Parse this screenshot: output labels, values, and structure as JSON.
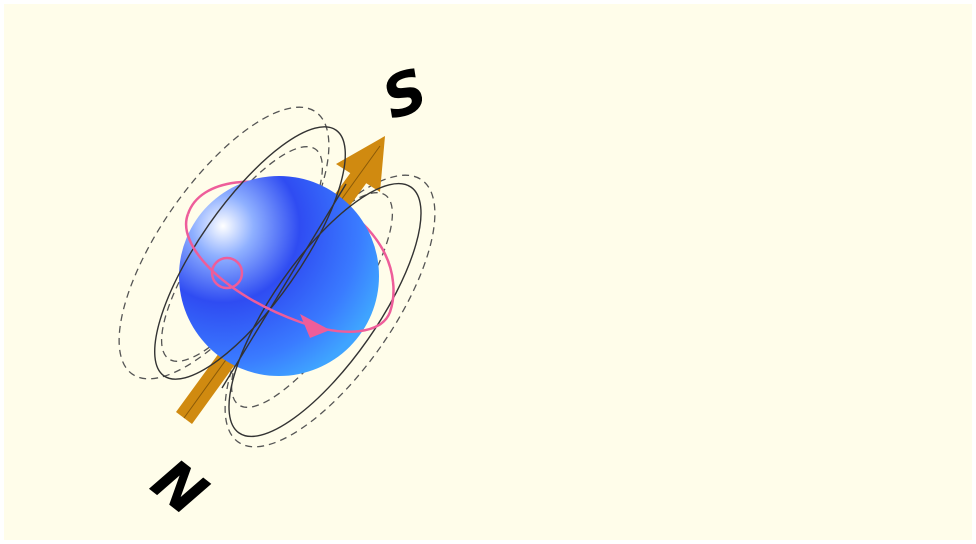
{
  "diagram": {
    "background": "#fffdea",
    "sphere_color": "#2a4cff",
    "sphere_highlight": "#ffffff",
    "axis_color": "#d08a10",
    "spin_color": "#ee5d9a",
    "field_line_color": "#444444",
    "labels": {
      "north": "N",
      "south": "S"
    }
  }
}
